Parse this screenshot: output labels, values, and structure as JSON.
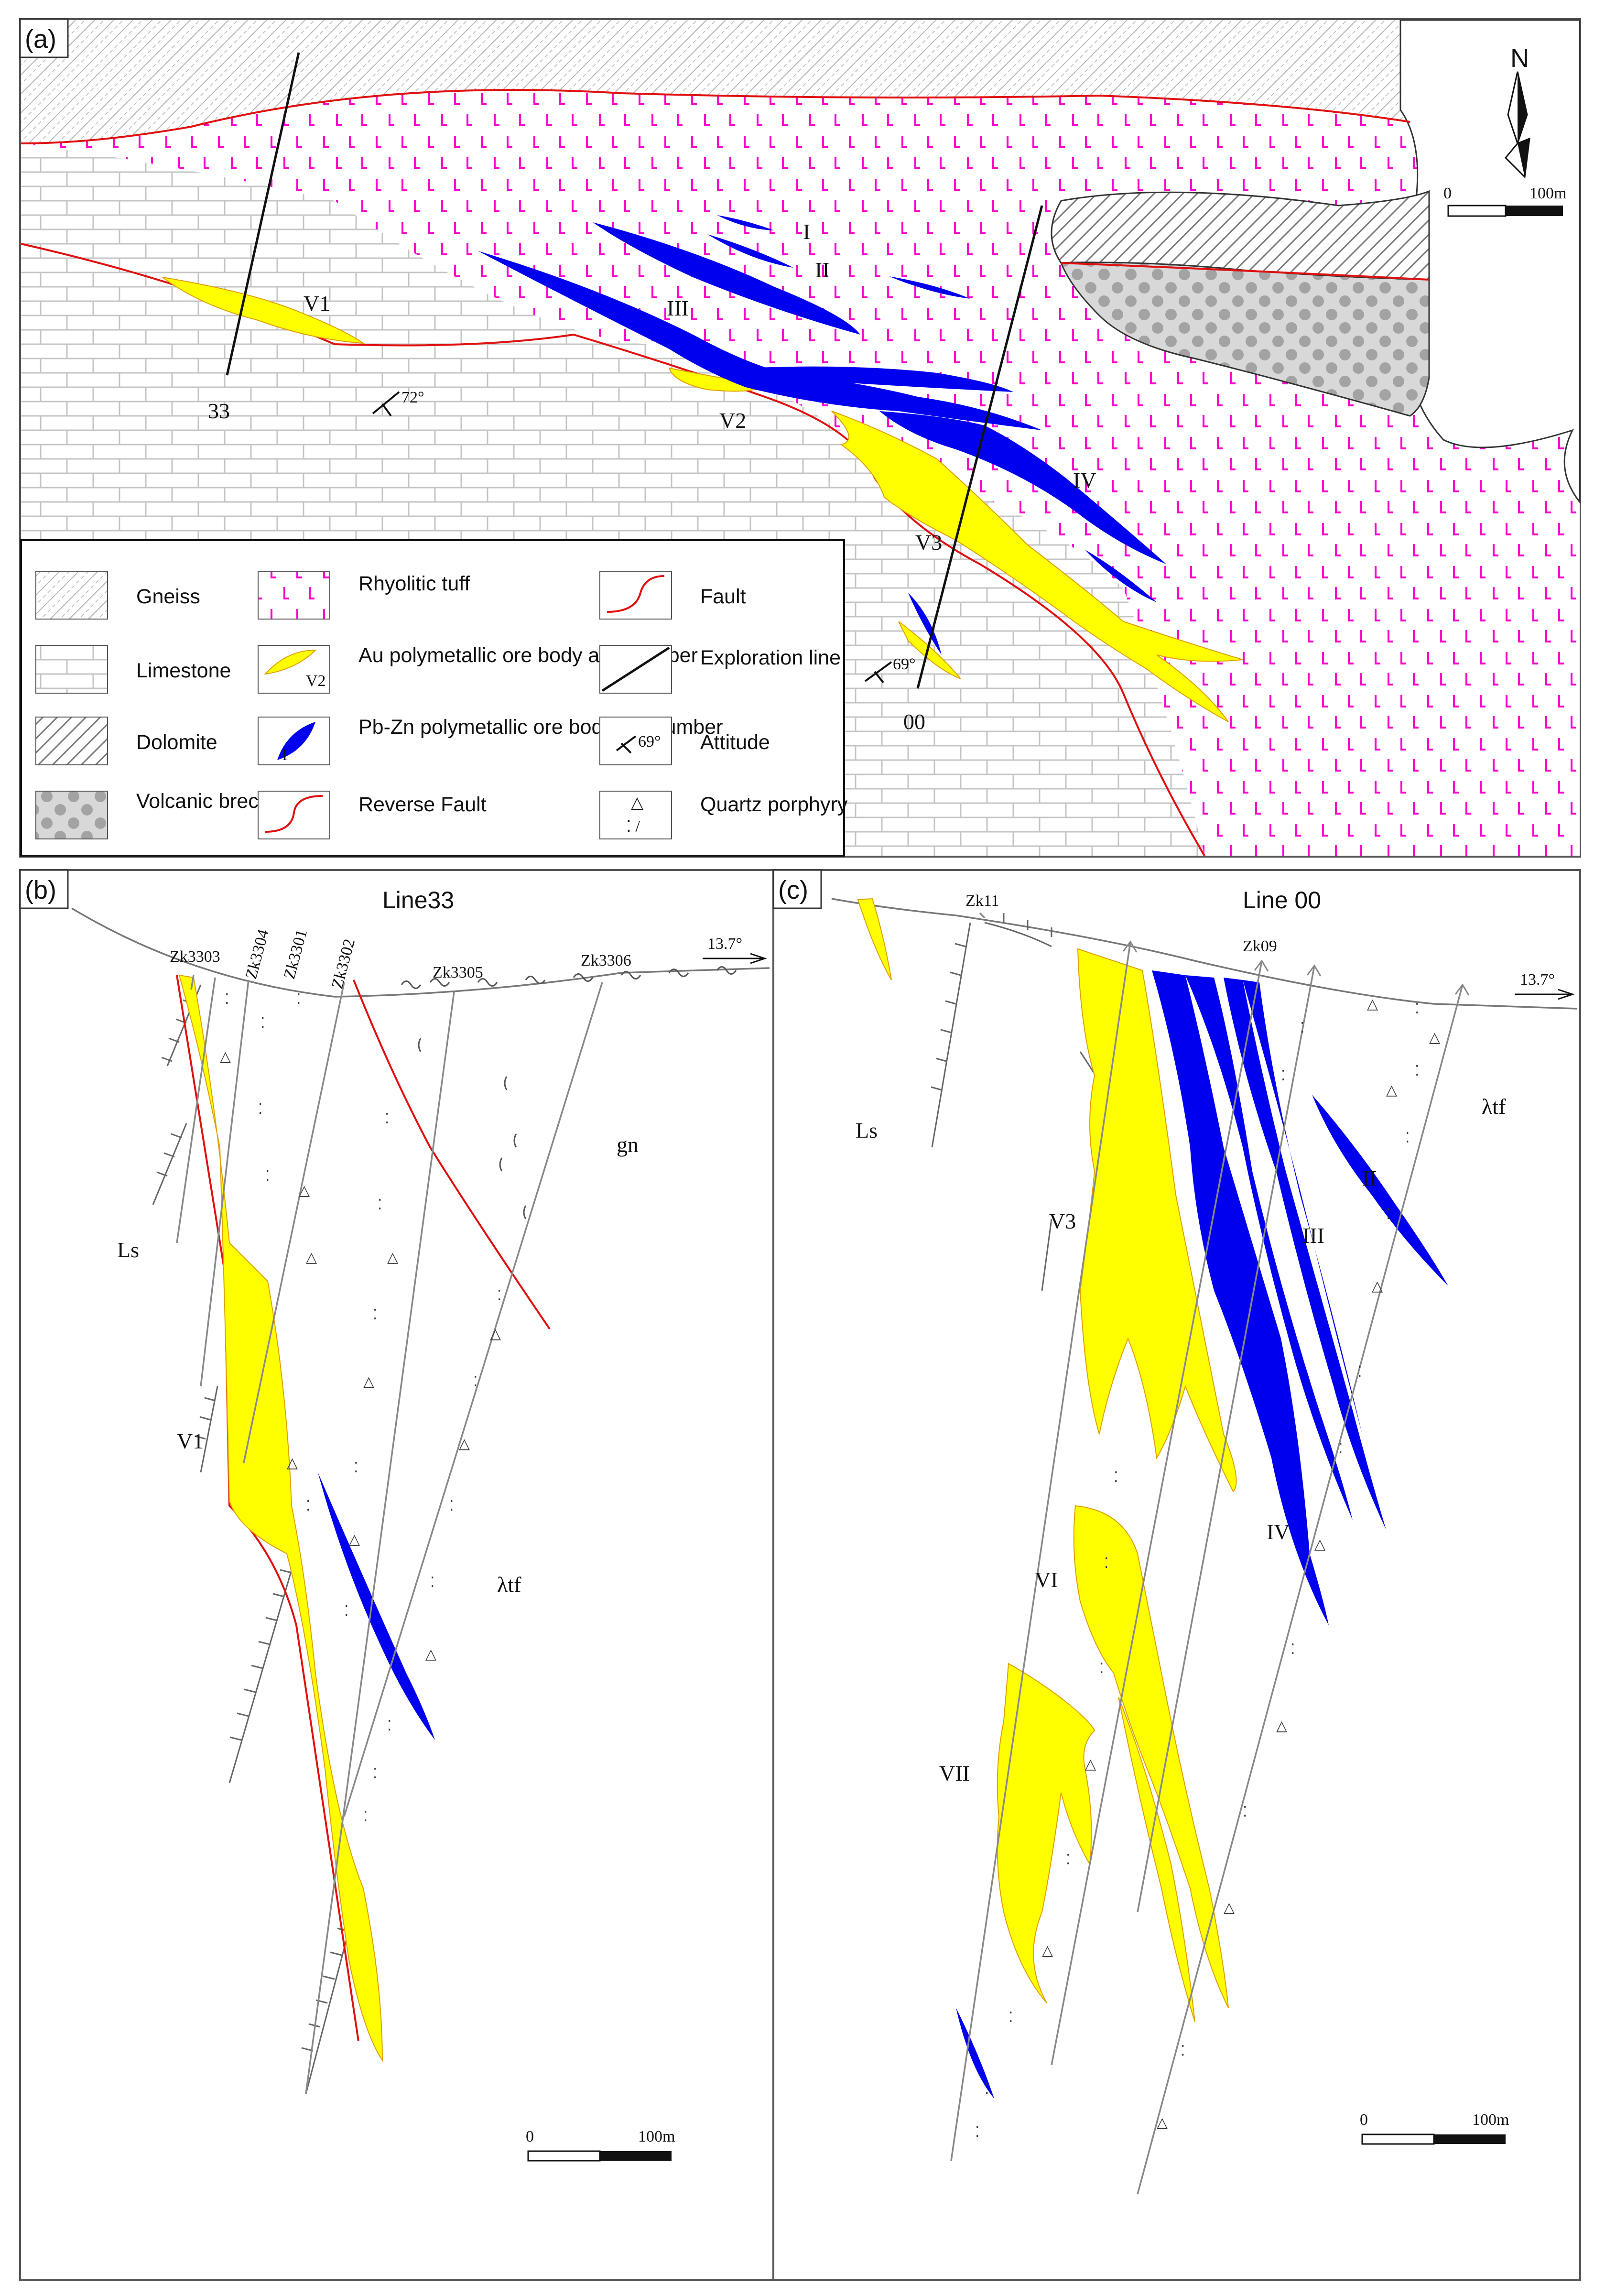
{
  "panels": {
    "a": {
      "tag": "(a)",
      "north": "N",
      "scale": {
        "zero": "0",
        "max": "100m"
      },
      "exploration_lines": [
        "33",
        "00"
      ],
      "ore_labels": {
        "au": [
          "V1",
          "V2",
          "V3"
        ],
        "pb": [
          "I",
          "II",
          "III",
          "IV"
        ]
      },
      "attitudes": [
        "72°",
        "69°"
      ],
      "legend": [
        {
          "key": "gneiss",
          "label": "Gneiss"
        },
        {
          "key": "tuff",
          "label": "Rhyolitic tuff"
        },
        {
          "key": "fault",
          "label": "Fault"
        },
        {
          "key": "limestone",
          "label": "Limestone"
        },
        {
          "key": "au",
          "label": "Au polymetallic ore body and number",
          "sample": "V2"
        },
        {
          "key": "expl",
          "label": "Exploration line"
        },
        {
          "key": "dolomite",
          "label": "Dolomite"
        },
        {
          "key": "pb",
          "label": "Pb-Zn polymetallic ore bodyand number",
          "sample": "I"
        },
        {
          "key": "attitude",
          "label": "Attitude",
          "sample": "69°"
        },
        {
          "key": "breccia",
          "label": "Volcanic breccia"
        },
        {
          "key": "reverse",
          "label": "Reverse Fault"
        },
        {
          "key": "porphyry",
          "label": "Quartz porphyry"
        }
      ]
    },
    "b": {
      "tag": "(b)",
      "title": "Line33",
      "boreholes": [
        "Zk3303",
        "Zk3304",
        "Zk3301",
        "Zk3302",
        "Zk3305",
        "Zk3306"
      ],
      "direction": "13.7°",
      "labels": {
        "ls": "Ls",
        "gn": "gn",
        "ltf": "λtf",
        "v1": "V1"
      },
      "scale": {
        "zero": "0",
        "max": "100m"
      }
    },
    "c": {
      "tag": "(c)",
      "title": "Line 00",
      "boreholes": [
        "Zk11",
        "Zk09"
      ],
      "direction": "13.7°",
      "labels": {
        "ls": "Ls",
        "ltf": "λtf",
        "v3": "V3",
        "vi": "VI",
        "vii": "VII",
        "ii": "II",
        "iii": "III",
        "iv": "IV"
      },
      "scale": {
        "zero": "0",
        "max": "100m"
      }
    }
  },
  "colors": {
    "au": "#ffff00",
    "pb": "#0000ee",
    "tuff": "#ff00cc",
    "fault": "#e01010"
  }
}
